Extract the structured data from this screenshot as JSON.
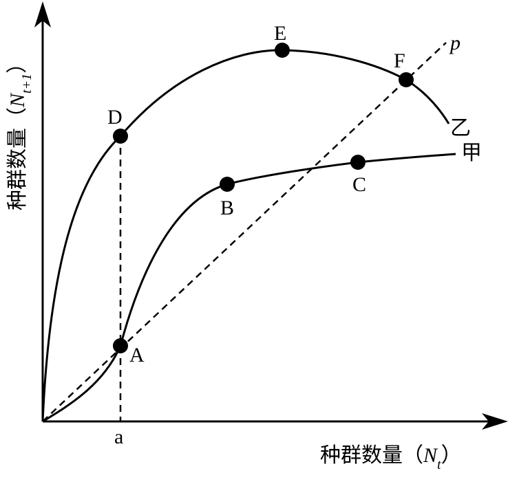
{
  "axes": {
    "x_title": "种群数量（",
    "x_var": "N",
    "x_sub": "t",
    "x_close": "）",
    "y_title": "种群数量（",
    "y_var": "N",
    "y_sub": "t+1",
    "y_close": "）",
    "x_tick": "a"
  },
  "lines": {
    "reference": "p",
    "curve_jia": "甲",
    "curve_yi": "乙"
  },
  "points": {
    "A": "A",
    "B": "B",
    "C": "C",
    "D": "D",
    "E": "E",
    "F": "F"
  }
}
